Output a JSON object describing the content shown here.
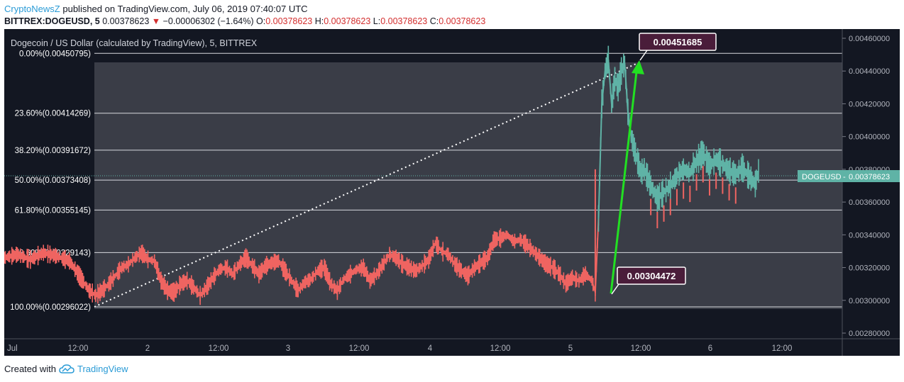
{
  "header": {
    "brand": "CryptoNewsZ",
    "published": " published on TradingView.com, July 06, 2019 07:40:07 UTC",
    "symbol": "BITTREX:DOGEUSD, 5",
    "last": "0.00378623",
    "change_arrow": "▼",
    "change": "−0.00006302 (−1.64%)",
    "o_label": "O:",
    "o": "0.00378623",
    "h_label": "H:",
    "h": "0.00378623",
    "l_label": "L:",
    "l": "0.00378623",
    "c_label": "C:",
    "c": "0.00378623"
  },
  "chart_title": "Dogecoin / US Dollar (calculated by TradingView), 5, BITTREX",
  "footer": {
    "created_with": "Created with",
    "brand": "TradingView",
    "logo_icon": "tradingview-cloud-icon"
  },
  "colors": {
    "down": "#ef6461",
    "up": "#5fb3a6",
    "background": "#131722",
    "panel": "#3a3d47",
    "arrow": "#22e022",
    "fib_line": "#d7d9de"
  },
  "chart_data": {
    "type": "line",
    "title": "Dogecoin / US Dollar (calculated by TradingView), 5, BITTREX",
    "ylim": [
      0.0028,
      0.0047
    ],
    "y_ticks": [
      "0.00280000",
      "0.00300000",
      "0.00320000",
      "0.00340000",
      "0.00360000",
      "0.00380000",
      "0.00400000",
      "0.00420000",
      "0.00440000",
      "0.00460000"
    ],
    "x_ticks": [
      "Jul",
      "12:00",
      "2",
      "12:00",
      "3",
      "12:00",
      "4",
      "12:00",
      "5",
      "12:00",
      "6",
      "12:00"
    ],
    "current_price_label": "DOGEUSD",
    "current_price": "0.00378623",
    "fib_levels": [
      {
        "label": "0.00%(0.00450795)",
        "value": 0.00450795
      },
      {
        "label": "23.60%(0.00414269)",
        "value": 0.00414269
      },
      {
        "label": "38.20%(0.00391672)",
        "value": 0.00391672
      },
      {
        "label": "50.00%(0.00373408)",
        "value": 0.00373408
      },
      {
        "label": "61.80%(0.00355145)",
        "value": 0.00355145
      },
      {
        "label": "78.60%(0.00329143)",
        "value": 0.00329143
      },
      {
        "label": "100.00%(0.00296022)",
        "value": 0.00296022
      }
    ],
    "price_series": [
      [
        0,
        0.00326
      ],
      [
        2,
        0.00328
      ],
      [
        4,
        0.00325
      ],
      [
        6,
        0.00329
      ],
      [
        8,
        0.00327
      ],
      [
        10,
        0.00324
      ],
      [
        11,
        0.00318
      ],
      [
        12,
        0.00312
      ],
      [
        13,
        0.00306
      ],
      [
        14,
        0.00303
      ],
      [
        15,
        0.00306
      ],
      [
        16,
        0.0031
      ],
      [
        17,
        0.00315
      ],
      [
        18,
        0.0032
      ],
      [
        19,
        0.00322
      ],
      [
        20,
        0.00326
      ],
      [
        21,
        0.00329
      ],
      [
        22,
        0.00325
      ],
      [
        23,
        0.00324
      ],
      [
        24,
        0.00312
      ],
      [
        25,
        0.00306
      ],
      [
        26,
        0.00305
      ],
      [
        27,
        0.0031
      ],
      [
        28,
        0.00312
      ],
      [
        29,
        0.00308
      ],
      [
        30,
        0.00303
      ],
      [
        31,
        0.00308
      ],
      [
        32,
        0.00314
      ],
      [
        33,
        0.00319
      ],
      [
        34,
        0.0032
      ],
      [
        35,
        0.00316
      ],
      [
        36,
        0.00322
      ],
      [
        37,
        0.00326
      ],
      [
        38,
        0.00321
      ],
      [
        39,
        0.00316
      ],
      [
        40,
        0.00321
      ],
      [
        41,
        0.00323
      ],
      [
        42,
        0.00324
      ],
      [
        43,
        0.00318
      ],
      [
        44,
        0.00312
      ],
      [
        45,
        0.00306
      ],
      [
        46,
        0.00311
      ],
      [
        47,
        0.00313
      ],
      [
        48,
        0.00318
      ],
      [
        49,
        0.0032
      ],
      [
        50,
        0.0031
      ],
      [
        51,
        0.00306
      ],
      [
        52,
        0.00313
      ],
      [
        53,
        0.00316
      ],
      [
        54,
        0.00319
      ],
      [
        55,
        0.0032
      ],
      [
        56,
        0.00312
      ],
      [
        57,
        0.00316
      ],
      [
        58,
        0.00322
      ],
      [
        59,
        0.00328
      ],
      [
        60,
        0.00326
      ],
      [
        61,
        0.00322
      ],
      [
        62,
        0.0032
      ],
      [
        63,
        0.00318
      ],
      [
        64,
        0.00321
      ],
      [
        65,
        0.00325
      ],
      [
        66,
        0.00335
      ],
      [
        67,
        0.0033
      ],
      [
        68,
        0.00328
      ],
      [
        69,
        0.00322
      ],
      [
        70,
        0.00318
      ],
      [
        71,
        0.00315
      ],
      [
        72,
        0.0032
      ],
      [
        73,
        0.00323
      ],
      [
        74,
        0.00326
      ],
      [
        75,
        0.00337
      ],
      [
        76,
        0.00338
      ],
      [
        77,
        0.0034
      ],
      [
        78,
        0.00336
      ],
      [
        79,
        0.00337
      ],
      [
        80,
        0.00334
      ],
      [
        81,
        0.0033
      ],
      [
        82,
        0.00326
      ],
      [
        83,
        0.00322
      ],
      [
        84,
        0.0032
      ],
      [
        85,
        0.00316
      ],
      [
        86,
        0.0031
      ],
      [
        87,
        0.00314
      ],
      [
        88,
        0.00312
      ],
      [
        89,
        0.00316
      ],
      [
        90,
        0.00312
      ],
      [
        90.5,
        0.00305
      ],
      [
        91,
        0.0035
      ],
      [
        91.5,
        0.0042
      ],
      [
        92,
        0.0044
      ],
      [
        92.5,
        0.00447
      ],
      [
        93,
        0.0042
      ],
      [
        93.5,
        0.00435
      ],
      [
        94,
        0.0043
      ],
      [
        94.5,
        0.0044
      ],
      [
        95,
        0.00445
      ],
      [
        95.5,
        0.00415
      ],
      [
        96,
        0.004
      ],
      [
        96.5,
        0.00392
      ],
      [
        97,
        0.00385
      ],
      [
        97.5,
        0.00378
      ],
      [
        98,
        0.0038
      ],
      [
        99,
        0.0037
      ],
      [
        100,
        0.00362
      ],
      [
        101,
        0.00366
      ],
      [
        102,
        0.0037
      ],
      [
        103,
        0.00376
      ],
      [
        104,
        0.0038
      ],
      [
        105,
        0.00378
      ],
      [
        106,
        0.00385
      ],
      [
        107,
        0.0039
      ],
      [
        108,
        0.00382
      ],
      [
        109,
        0.00386
      ],
      [
        110,
        0.00383
      ],
      [
        111,
        0.00379
      ],
      [
        112,
        0.00377
      ],
      [
        113,
        0.00381
      ],
      [
        114,
        0.00376
      ],
      [
        115,
        0.00371
      ],
      [
        115.5,
        0.00379
      ]
    ],
    "annotations": [
      {
        "text": "0.00451685",
        "x": 95.5,
        "value": 0.00451685
      },
      {
        "text": "0.00304472",
        "x": 90.5,
        "value": 0.00304472
      }
    ]
  }
}
